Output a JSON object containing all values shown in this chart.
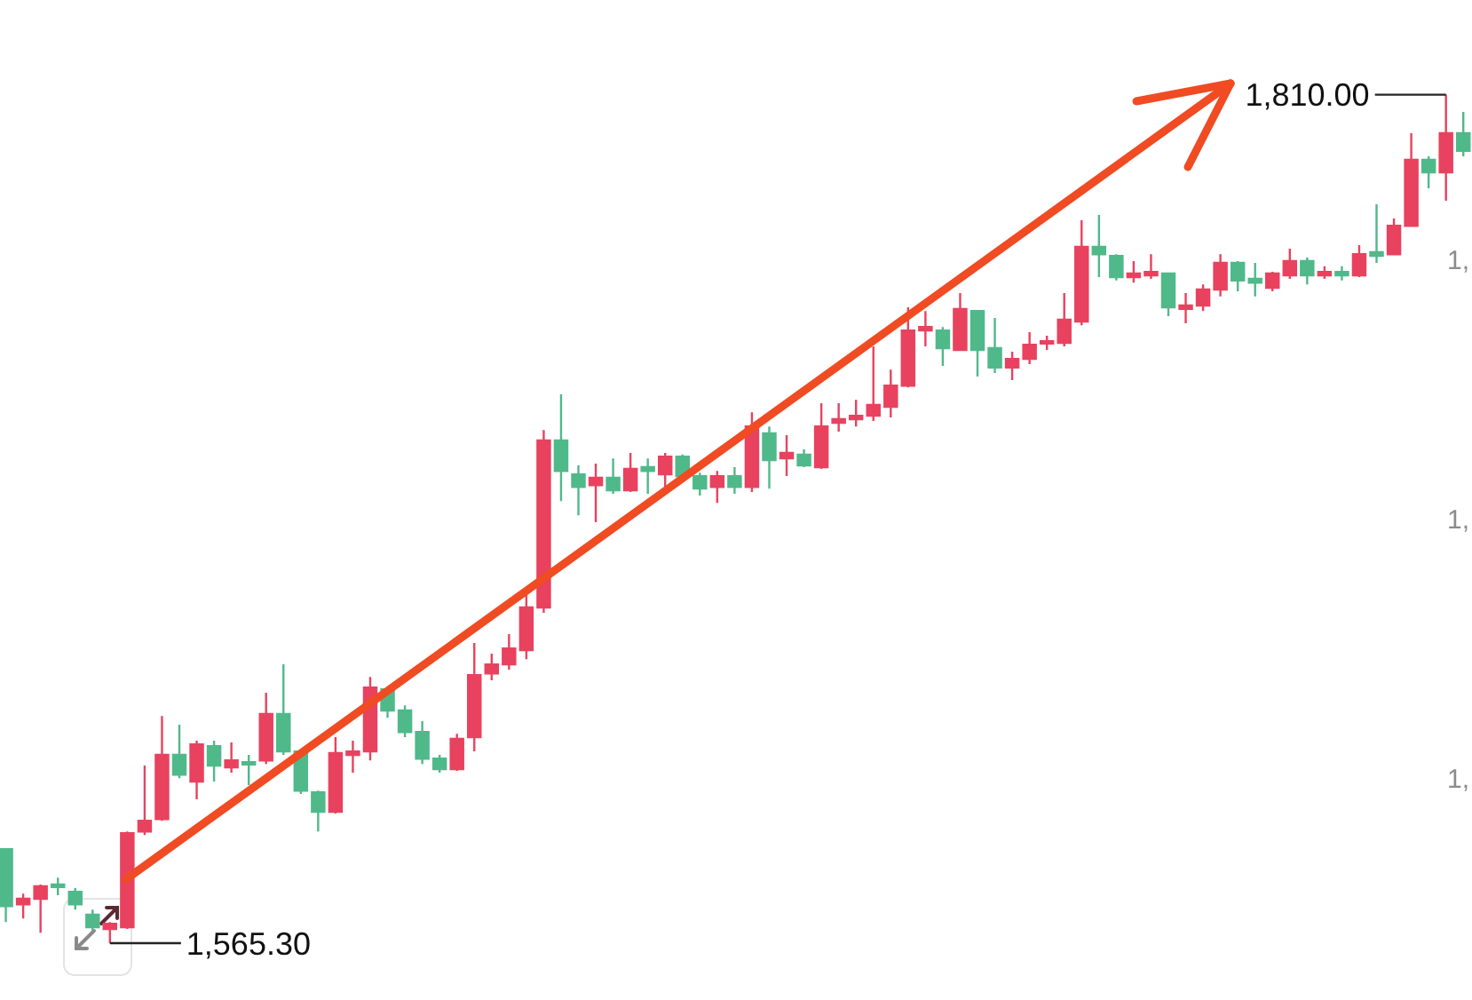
{
  "chart_data": {
    "type": "candlestick",
    "categories": [
      null,
      null,
      null,
      null,
      null,
      null,
      null,
      null,
      null,
      null,
      null,
      null,
      null,
      null,
      null,
      null,
      null,
      null,
      null,
      null,
      null,
      null,
      null,
      null,
      null,
      null,
      null,
      null,
      null,
      null,
      null,
      null,
      null,
      null,
      null,
      null,
      null,
      null,
      null,
      null,
      null,
      null,
      null,
      null,
      null,
      null,
      null,
      null,
      null,
      null,
      null,
      null,
      null,
      null,
      null,
      null,
      null,
      null,
      null,
      null,
      null,
      null,
      null,
      null,
      null,
      null,
      null,
      null,
      null,
      null,
      null,
      null,
      null,
      null,
      null,
      null,
      null,
      null,
      null,
      null,
      null,
      null,
      null,
      null,
      null
    ],
    "ohlc": [
      [
        1592.4,
        1592.4,
        1571.4,
        1576.0
      ],
      [
        1576.5,
        1579.6,
        1572.4,
        1578.1
      ],
      [
        1578.1,
        1582.2,
        1568.3,
        1581.7
      ],
      [
        1582.2,
        1584.2,
        1579.1,
        1581.5
      ],
      [
        1580.1,
        1581.2,
        1575.0,
        1576.5
      ],
      [
        1573.5,
        1575.0,
        1568.9,
        1569.9
      ],
      [
        1569.4,
        1571.4,
        1565.3,
        1570.9
      ],
      [
        1569.9,
        1597.5,
        1569.4,
        1597.0
      ],
      [
        1597.5,
        1616.5,
        1596.5,
        1600.6
      ],
      [
        1601.1,
        1630.8,
        1600.6,
        1619.6
      ],
      [
        1619.6,
        1628.3,
        1612.9,
        1613.9
      ],
      [
        1611.9,
        1623.7,
        1606.8,
        1622.6
      ],
      [
        1622.1,
        1623.7,
        1611.9,
        1616.5
      ],
      [
        1616.0,
        1623.2,
        1614.5,
        1618.0
      ],
      [
        1617.5,
        1619.6,
        1610.9,
        1617.0
      ],
      [
        1618.0,
        1637.5,
        1617.0,
        1631.4
      ],
      [
        1631.4,
        1645.7,
        1619.6,
        1620.6
      ],
      [
        1620.6,
        1621.1,
        1608.3,
        1609.3
      ],
      [
        1608.8,
        1609.3,
        1597.5,
        1603.2
      ],
      [
        1603.2,
        1624.7,
        1602.7,
        1620.1
      ],
      [
        1619.6,
        1623.7,
        1614.5,
        1620.6
      ],
      [
        1620.6,
        1642.1,
        1618.0,
        1639.0
      ],
      [
        1638.5,
        1639.0,
        1630.3,
        1632.4
      ],
      [
        1632.4,
        1633.9,
        1624.7,
        1626.2
      ],
      [
        1626.2,
        1629.3,
        1617.0,
        1618.5
      ],
      [
        1618.5,
        1619.6,
        1614.5,
        1615.5
      ],
      [
        1615.5,
        1625.7,
        1615.0,
        1624.2
      ],
      [
        1624.7,
        1651.9,
        1620.6,
        1642.6
      ],
      [
        1643.1,
        1648.8,
        1641.1,
        1645.7
      ],
      [
        1645.7,
        1654.4,
        1644.2,
        1650.3
      ],
      [
        1649.8,
        1665.7,
        1647.2,
        1662.1
      ],
      [
        1662.1,
        1713.3,
        1660.6,
        1710.3
      ],
      [
        1710.3,
        1723.6,
        1692.8,
        1701.5
      ],
      [
        1700.5,
        1703.1,
        1688.7,
        1696.9
      ],
      [
        1697.4,
        1703.6,
        1686.7,
        1699.5
      ],
      [
        1699.5,
        1705.1,
        1694.9,
        1695.9
      ],
      [
        1695.9,
        1706.7,
        1695.4,
        1702.1
      ],
      [
        1702.6,
        1705.1,
        1694.9,
        1701.5
      ],
      [
        1700.5,
        1706.7,
        1696.9,
        1705.6
      ],
      [
        1705.6,
        1706.2,
        1699.0,
        1700.0
      ],
      [
        1700.0,
        1701.0,
        1694.4,
        1696.4
      ],
      [
        1696.9,
        1701.5,
        1692.3,
        1700.0
      ],
      [
        1700.0,
        1702.6,
        1694.9,
        1696.9
      ],
      [
        1696.9,
        1718.4,
        1695.4,
        1714.3
      ],
      [
        1712.3,
        1714.3,
        1696.4,
        1704.6
      ],
      [
        1705.1,
        1711.8,
        1700.0,
        1706.7
      ],
      [
        1706.2,
        1707.7,
        1702.6,
        1703.1
      ],
      [
        1702.6,
        1721.0,
        1702.1,
        1714.3
      ],
      [
        1715.4,
        1721.0,
        1712.8,
        1716.4
      ],
      [
        1716.4,
        1722.0,
        1714.3,
        1717.4
      ],
      [
        1717.4,
        1737.4,
        1715.9,
        1720.5
      ],
      [
        1720.0,
        1730.7,
        1716.9,
        1726.1
      ],
      [
        1726.1,
        1748.7,
        1725.6,
        1742.0
      ],
      [
        1742.0,
        1747.6,
        1737.4,
        1743.0
      ],
      [
        1742.0,
        1743.0,
        1731.8,
        1736.9
      ],
      [
        1736.4,
        1752.8,
        1736.4,
        1748.2
      ],
      [
        1747.6,
        1747.6,
        1728.7,
        1736.4
      ],
      [
        1736.9,
        1745.6,
        1729.7,
        1731.3
      ],
      [
        1731.3,
        1735.9,
        1727.7,
        1733.8
      ],
      [
        1733.8,
        1741.5,
        1732.3,
        1737.9
      ],
      [
        1738.4,
        1740.5,
        1736.4,
        1738.9
      ],
      [
        1738.4,
        1752.8,
        1737.4,
        1745.1
      ],
      [
        1744.6,
        1773.8,
        1743.5,
        1766.1
      ],
      [
        1766.1,
        1775.3,
        1757.4,
        1764.0
      ],
      [
        1763.5,
        1764.0,
        1756.4,
        1757.4
      ],
      [
        1757.4,
        1762.0,
        1755.8,
        1758.4
      ],
      [
        1757.9,
        1764.0,
        1756.9,
        1758.9
      ],
      [
        1758.4,
        1758.4,
        1746.1,
        1748.7
      ],
      [
        1748.2,
        1752.8,
        1744.1,
        1749.2
      ],
      [
        1749.2,
        1755.3,
        1747.6,
        1753.8
      ],
      [
        1753.8,
        1764.0,
        1751.8,
        1761.5
      ],
      [
        1761.5,
        1762.0,
        1753.3,
        1756.4
      ],
      [
        1756.9,
        1761.5,
        1751.8,
        1755.8
      ],
      [
        1754.3,
        1758.9,
        1753.3,
        1758.4
      ],
      [
        1757.9,
        1765.6,
        1756.9,
        1762.0
      ],
      [
        1762.0,
        1763.0,
        1755.3,
        1757.9
      ],
      [
        1757.9,
        1760.5,
        1756.9,
        1758.9
      ],
      [
        1758.9,
        1760.5,
        1756.4,
        1757.9
      ],
      [
        1757.9,
        1766.6,
        1757.4,
        1764.0
      ],
      [
        1764.6,
        1778.4,
        1761.5,
        1763.5
      ],
      [
        1764.0,
        1774.3,
        1764.0,
        1772.2
      ],
      [
        1772.2,
        1798.9,
        1772.2,
        1791.2
      ],
      [
        1791.2,
        1792.2,
        1783.0,
        1787.6
      ],
      [
        1787.6,
        1810.0,
        1779.4,
        1798.9
      ],
      [
        1798.9,
        1805.0,
        1792.2,
        1793.8
      ]
    ],
    "colors": [
      "#4fb98a",
      "#e8425f",
      "#e8425f",
      "#4fb98a",
      "#4fb98a",
      "#4fb98a",
      "#e8425f",
      "#e8425f",
      "#e8425f",
      "#e8425f",
      "#4fb98a",
      "#e8425f",
      "#4fb98a",
      "#e8425f",
      "#4fb98a",
      "#e8425f",
      "#4fb98a",
      "#4fb98a",
      "#4fb98a",
      "#e8425f",
      "#e8425f",
      "#e8425f",
      "#4fb98a",
      "#4fb98a",
      "#4fb98a",
      "#4fb98a",
      "#e8425f",
      "#e8425f",
      "#e8425f",
      "#e8425f",
      "#e8425f",
      "#e8425f",
      "#4fb98a",
      "#4fb98a",
      "#e8425f",
      "#4fb98a",
      "#e8425f",
      "#4fb98a",
      "#e8425f",
      "#4fb98a",
      "#4fb98a",
      "#e8425f",
      "#4fb98a",
      "#e8425f",
      "#4fb98a",
      "#e8425f",
      "#4fb98a",
      "#e8425f",
      "#e8425f",
      "#e8425f",
      "#e8425f",
      "#e8425f",
      "#e8425f",
      "#e8425f",
      "#4fb98a",
      "#e8425f",
      "#4fb98a",
      "#4fb98a",
      "#e8425f",
      "#e8425f",
      "#e8425f",
      "#e8425f",
      "#e8425f",
      "#4fb98a",
      "#4fb98a",
      "#e8425f",
      "#e8425f",
      "#4fb98a",
      "#e8425f",
      "#e8425f",
      "#e8425f",
      "#4fb98a",
      "#4fb98a",
      "#e8425f",
      "#e8425f",
      "#4fb98a",
      "#e8425f",
      "#4fb98a",
      "#e8425f",
      "#4fb98a",
      "#e8425f",
      "#e8425f",
      "#4fb98a",
      "#e8425f",
      "#4fb98a"
    ],
    "annotations": [
      "1,810.00",
      "1,565.30",
      "1,",
      "1,",
      "1,"
    ]
  }
}
